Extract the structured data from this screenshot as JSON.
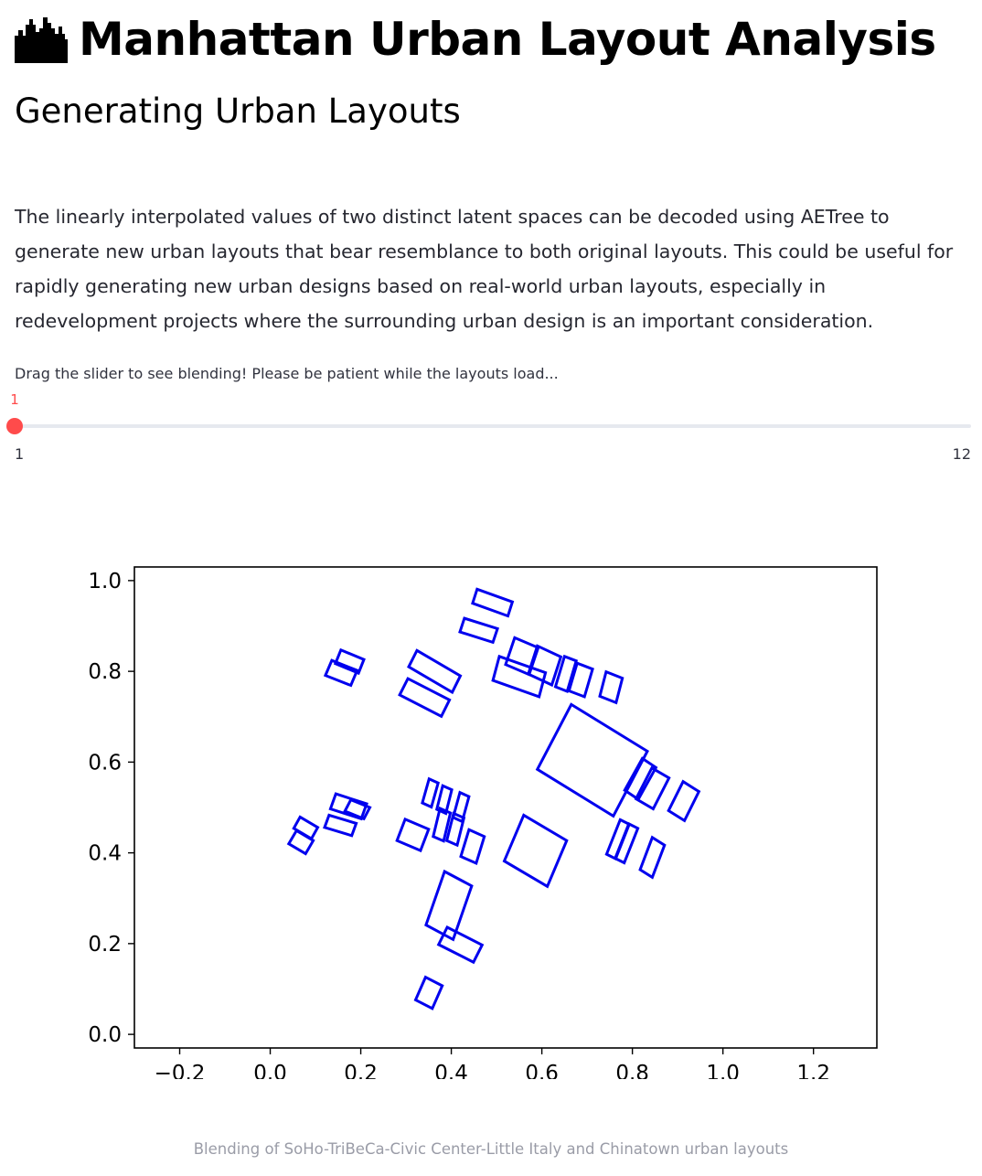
{
  "page": {
    "title": "Manhattan Urban Layout Analysis",
    "title_icon": "city-skyline-icon",
    "subtitle": "Generating Urban Layouts",
    "description": "The linearly interpolated values of two distinct latent spaces can be decoded using AETree to generate new urban layouts that bear resemblance to both original layouts. This could be useful for rapidly generating new urban designs based on real-world urban layouts, especially in redevelopment projects where the surrounding urban design is an important consideration.",
    "slider_hint": "Drag the slider to see blending! Please be patient while the layouts load...",
    "caption": "Blending of SoHo-TriBeCa-Civic Center-Little Italy and Chinatown urban layouts"
  },
  "slider": {
    "value": "1",
    "min_label": "1",
    "max_label": "12",
    "min": 1,
    "max": 12,
    "current": 1,
    "accent_color": "#ff4b4b",
    "track_color": "#e6e9ef"
  },
  "chart_data": {
    "type": "scatter",
    "title": "",
    "xlabel": "",
    "ylabel": "",
    "xlim": [
      -0.3,
      1.34
    ],
    "ylim": [
      -0.03,
      1.03
    ],
    "xticks": [
      "−0.2",
      "0.0",
      "0.2",
      "0.4",
      "0.6",
      "0.8",
      "1.0",
      "1.2"
    ],
    "xtick_values": [
      -0.2,
      0.0,
      0.2,
      0.4,
      0.6,
      0.8,
      1.0,
      1.2
    ],
    "yticks": [
      "0.0",
      "0.2",
      "0.4",
      "0.6",
      "0.8",
      "1.0"
    ],
    "ytick_values": [
      0.0,
      0.2,
      0.4,
      0.6,
      0.8,
      1.0
    ],
    "grid": false,
    "color": "#0000ee",
    "rectangles": [
      [
        [
          0.457,
          0.981
        ],
        [
          0.535,
          0.953
        ],
        [
          0.525,
          0.922
        ],
        [
          0.447,
          0.95
        ]
      ],
      [
        [
          0.429,
          0.917
        ],
        [
          0.502,
          0.894
        ],
        [
          0.492,
          0.864
        ],
        [
          0.419,
          0.887
        ]
      ],
      [
        [
          0.54,
          0.874
        ],
        [
          0.592,
          0.852
        ],
        [
          0.572,
          0.793
        ],
        [
          0.52,
          0.815
        ]
      ],
      [
        [
          0.59,
          0.856
        ],
        [
          0.642,
          0.832
        ],
        [
          0.622,
          0.77
        ],
        [
          0.57,
          0.794
        ]
      ],
      [
        [
          0.65,
          0.833
        ],
        [
          0.676,
          0.823
        ],
        [
          0.656,
          0.756
        ],
        [
          0.63,
          0.766
        ]
      ],
      [
        [
          0.678,
          0.818
        ],
        [
          0.712,
          0.805
        ],
        [
          0.694,
          0.744
        ],
        [
          0.66,
          0.757
        ]
      ],
      [
        [
          0.742,
          0.799
        ],
        [
          0.778,
          0.785
        ],
        [
          0.764,
          0.731
        ],
        [
          0.728,
          0.745
        ]
      ],
      [
        [
          0.156,
          0.847
        ],
        [
          0.207,
          0.826
        ],
        [
          0.195,
          0.796
        ],
        [
          0.144,
          0.817
        ]
      ],
      [
        [
          0.136,
          0.824
        ],
        [
          0.192,
          0.802
        ],
        [
          0.178,
          0.769
        ],
        [
          0.122,
          0.791
        ]
      ],
      [
        [
          0.324,
          0.846
        ],
        [
          0.42,
          0.79
        ],
        [
          0.402,
          0.754
        ],
        [
          0.306,
          0.81
        ]
      ],
      [
        [
          0.304,
          0.784
        ],
        [
          0.396,
          0.737
        ],
        [
          0.378,
          0.701
        ],
        [
          0.286,
          0.748
        ]
      ],
      [
        [
          0.506,
          0.833
        ],
        [
          0.608,
          0.797
        ],
        [
          0.594,
          0.744
        ],
        [
          0.492,
          0.78
        ]
      ],
      [
        [
          0.665,
          0.727
        ],
        [
          0.833,
          0.624
        ],
        [
          0.758,
          0.481
        ],
        [
          0.59,
          0.584
        ]
      ],
      [
        [
          0.822,
          0.608
        ],
        [
          0.852,
          0.588
        ],
        [
          0.813,
          0.518
        ],
        [
          0.783,
          0.538
        ]
      ],
      [
        [
          0.843,
          0.587
        ],
        [
          0.881,
          0.565
        ],
        [
          0.846,
          0.497
        ],
        [
          0.808,
          0.519
        ]
      ],
      [
        [
          0.912,
          0.557
        ],
        [
          0.947,
          0.535
        ],
        [
          0.915,
          0.471
        ],
        [
          0.88,
          0.493
        ]
      ],
      [
        [
          0.56,
          0.483
        ],
        [
          0.655,
          0.427
        ],
        [
          0.612,
          0.326
        ],
        [
          0.517,
          0.382
        ]
      ],
      [
        [
          0.773,
          0.473
        ],
        [
          0.793,
          0.463
        ],
        [
          0.763,
          0.387
        ],
        [
          0.743,
          0.397
        ]
      ],
      [
        [
          0.792,
          0.464
        ],
        [
          0.812,
          0.454
        ],
        [
          0.782,
          0.378
        ],
        [
          0.762,
          0.388
        ]
      ],
      [
        [
          0.844,
          0.434
        ],
        [
          0.871,
          0.417
        ],
        [
          0.844,
          0.346
        ],
        [
          0.817,
          0.363
        ]
      ],
      [
        [
          0.351,
          0.563
        ],
        [
          0.371,
          0.554
        ],
        [
          0.356,
          0.501
        ],
        [
          0.336,
          0.51
        ]
      ],
      [
        [
          0.381,
          0.548
        ],
        [
          0.401,
          0.539
        ],
        [
          0.388,
          0.487
        ],
        [
          0.368,
          0.496
        ]
      ],
      [
        [
          0.419,
          0.533
        ],
        [
          0.439,
          0.524
        ],
        [
          0.424,
          0.469
        ],
        [
          0.404,
          0.478
        ]
      ],
      [
        [
          0.375,
          0.498
        ],
        [
          0.398,
          0.488
        ],
        [
          0.383,
          0.426
        ],
        [
          0.36,
          0.436
        ]
      ],
      [
        [
          0.405,
          0.487
        ],
        [
          0.428,
          0.477
        ],
        [
          0.413,
          0.417
        ],
        [
          0.39,
          0.427
        ]
      ],
      [
        [
          0.439,
          0.451
        ],
        [
          0.473,
          0.436
        ],
        [
          0.455,
          0.377
        ],
        [
          0.421,
          0.392
        ]
      ],
      [
        [
          0.298,
          0.474
        ],
        [
          0.35,
          0.452
        ],
        [
          0.332,
          0.405
        ],
        [
          0.28,
          0.427
        ]
      ],
      [
        [
          0.178,
          0.517
        ],
        [
          0.22,
          0.5
        ],
        [
          0.207,
          0.475
        ],
        [
          0.165,
          0.492
        ]
      ],
      [
        [
          0.145,
          0.53
        ],
        [
          0.213,
          0.508
        ],
        [
          0.201,
          0.475
        ],
        [
          0.133,
          0.497
        ]
      ],
      [
        [
          0.13,
          0.483
        ],
        [
          0.19,
          0.465
        ],
        [
          0.18,
          0.438
        ],
        [
          0.12,
          0.456
        ]
      ],
      [
        [
          0.066,
          0.479
        ],
        [
          0.105,
          0.456
        ],
        [
          0.091,
          0.431
        ],
        [
          0.052,
          0.454
        ]
      ],
      [
        [
          0.058,
          0.449
        ],
        [
          0.095,
          0.427
        ],
        [
          0.078,
          0.398
        ],
        [
          0.041,
          0.42
        ]
      ],
      [
        [
          0.385,
          0.359
        ],
        [
          0.445,
          0.327
        ],
        [
          0.404,
          0.209
        ],
        [
          0.344,
          0.241
        ]
      ],
      [
        [
          0.391,
          0.236
        ],
        [
          0.468,
          0.197
        ],
        [
          0.449,
          0.159
        ],
        [
          0.372,
          0.198
        ]
      ],
      [
        [
          0.343,
          0.126
        ],
        [
          0.38,
          0.107
        ],
        [
          0.358,
          0.057
        ],
        [
          0.321,
          0.076
        ]
      ]
    ]
  }
}
